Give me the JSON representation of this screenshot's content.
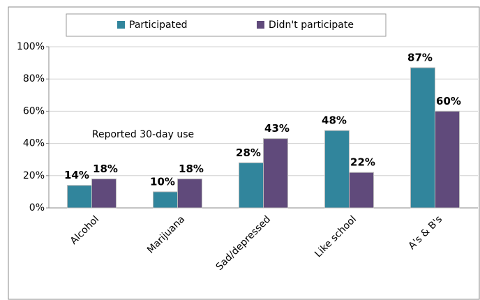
{
  "chart_data": {
    "type": "bar",
    "categories": [
      "Alcohol",
      "Marijuana",
      "Sad/depressed",
      "Like school",
      "A's & B's"
    ],
    "series": [
      {
        "name": "Participated",
        "color": "#31859c",
        "values": [
          14,
          10,
          28,
          48,
          87
        ],
        "value_labels": [
          "14%",
          "10%",
          "28%",
          "48%",
          "87%"
        ]
      },
      {
        "name": "Didn't participate",
        "color": "#604a7b",
        "values": [
          18,
          18,
          43,
          22,
          60
        ],
        "value_labels": [
          "18%",
          "18%",
          "43%",
          "22%",
          "60%"
        ]
      }
    ],
    "annotation": "Reported 30-day use",
    "ylim": [
      0,
      100
    ],
    "yticks": [
      {
        "value": 0,
        "label": "0%"
      },
      {
        "value": 20,
        "label": "20%"
      },
      {
        "value": 40,
        "label": "40%"
      },
      {
        "value": 60,
        "label": "60%"
      },
      {
        "value": 80,
        "label": "80%"
      },
      {
        "value": 100,
        "label": "100%"
      }
    ],
    "grid": true,
    "legend": "top"
  }
}
